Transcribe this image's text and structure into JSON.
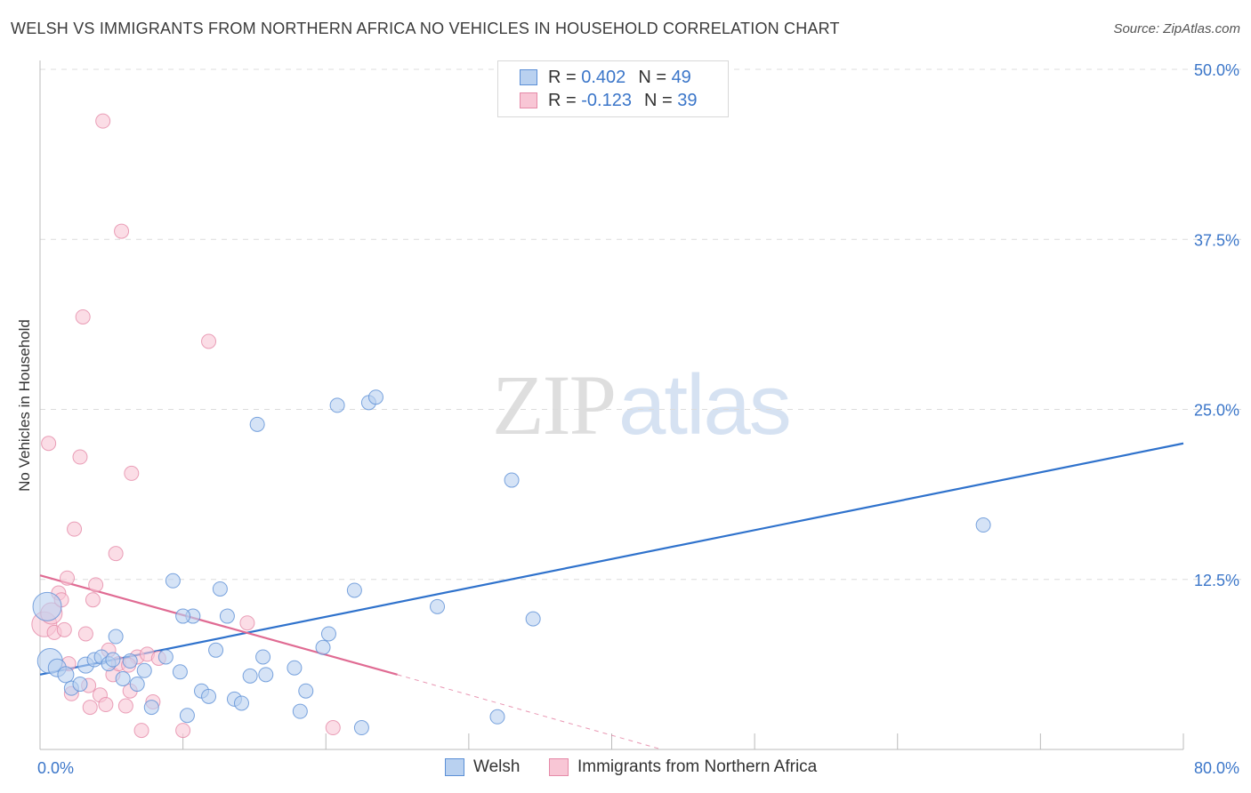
{
  "title": "WELSH VS IMMIGRANTS FROM NORTHERN AFRICA NO VEHICLES IN HOUSEHOLD CORRELATION CHART",
  "source": "Source: ZipAtlas.com",
  "watermark": {
    "part1": "ZIP",
    "part2": "atlas"
  },
  "legend": {
    "welsh": {
      "r_label": "R = ",
      "r_value": "0.402",
      "n_label": "N = ",
      "n_value": "49"
    },
    "immigrants": {
      "r_label": "R = ",
      "r_value": "-0.123",
      "n_label": "N = ",
      "n_value": "39"
    }
  },
  "chart_data": {
    "type": "scatter",
    "title": "WELSH VS IMMIGRANTS FROM NORTHERN AFRICA NO VEHICLES IN HOUSEHOLD CORRELATION CHART",
    "xlabel": "",
    "ylabel": "No Vehicles in Household",
    "xlim": [
      0,
      80
    ],
    "ylim": [
      0,
      50
    ],
    "x_tick_labels": [
      "0.0%",
      "80.0%"
    ],
    "y_ticks": [
      12.5,
      25.0,
      37.5,
      50.0
    ],
    "y_tick_labels": [
      "12.5%",
      "25.0%",
      "37.5%",
      "50.0%"
    ],
    "grid": true,
    "legend_position": "top-center",
    "colors": {
      "welsh_fill": "#b9d1f0",
      "welsh_stroke": "#5b8fd6",
      "welsh_line": "#2f72cc",
      "immigrants_fill": "#f8c6d5",
      "immigrants_stroke": "#e58aa8",
      "immigrants_line": "#e06b93",
      "tick_text": "#3b76c9",
      "grid": "#dcdcdc"
    },
    "series": [
      {
        "name": "Welsh",
        "r": 0.402,
        "n": 49,
        "trend": {
          "x0": 0,
          "y0": 5.5,
          "x1": 80,
          "y1": 22.5
        },
        "points": [
          [
            0.5,
            10.5,
            16
          ],
          [
            0.7,
            6.5,
            14
          ],
          [
            1.2,
            6.0,
            10
          ],
          [
            1.8,
            5.5,
            9
          ],
          [
            2.2,
            4.5,
            8
          ],
          [
            2.8,
            4.8,
            8
          ],
          [
            3.2,
            6.2,
            9
          ],
          [
            3.8,
            6.6,
            8
          ],
          [
            4.3,
            6.8,
            8
          ],
          [
            4.8,
            6.3,
            8
          ],
          [
            5.1,
            6.6,
            8
          ],
          [
            5.3,
            8.3,
            8
          ],
          [
            5.8,
            5.2,
            8
          ],
          [
            6.3,
            6.5,
            8
          ],
          [
            6.8,
            4.8,
            8
          ],
          [
            7.3,
            5.8,
            8
          ],
          [
            7.8,
            3.1,
            8
          ],
          [
            8.8,
            6.8,
            8
          ],
          [
            9.3,
            12.4,
            8
          ],
          [
            9.8,
            5.7,
            8
          ],
          [
            10.3,
            2.5,
            8
          ],
          [
            10.7,
            9.8,
            8
          ],
          [
            11.3,
            4.3,
            8
          ],
          [
            11.8,
            3.9,
            8
          ],
          [
            12.3,
            7.3,
            8
          ],
          [
            12.6,
            11.8,
            8
          ],
          [
            13.1,
            9.8,
            8
          ],
          [
            13.6,
            3.7,
            8
          ],
          [
            14.1,
            3.4,
            8
          ],
          [
            14.7,
            5.4,
            8
          ],
          [
            15.2,
            23.9,
            8
          ],
          [
            15.6,
            6.8,
            8
          ],
          [
            15.8,
            5.5,
            8
          ],
          [
            17.8,
            6.0,
            8
          ],
          [
            18.2,
            2.8,
            8
          ],
          [
            18.6,
            4.3,
            8
          ],
          [
            19.8,
            7.5,
            8
          ],
          [
            20.2,
            8.5,
            8
          ],
          [
            20.8,
            25.3,
            8
          ],
          [
            22.0,
            11.7,
            8
          ],
          [
            22.5,
            1.6,
            8
          ],
          [
            23.0,
            25.5,
            8
          ],
          [
            23.5,
            25.9,
            8
          ],
          [
            27.8,
            10.5,
            8
          ],
          [
            32.0,
            2.4,
            8
          ],
          [
            33.0,
            19.8,
            8
          ],
          [
            34.5,
            9.6,
            8
          ],
          [
            66.0,
            16.5,
            8
          ],
          [
            10.0,
            9.8,
            8
          ]
        ]
      },
      {
        "name": "Immigrants from Northern Africa",
        "r": -0.123,
        "n": 39,
        "trend": {
          "x0": 0,
          "y0": 12.8,
          "x1": 25,
          "y1": 5.5,
          "dash_to_x": 43.5,
          "dash_to_y": 0
        },
        "points": [
          [
            0.3,
            9.2,
            14
          ],
          [
            0.8,
            10.0,
            12
          ],
          [
            0.6,
            22.5,
            8
          ],
          [
            1.0,
            8.6,
            8
          ],
          [
            1.3,
            11.5,
            8
          ],
          [
            1.5,
            11.0,
            8
          ],
          [
            1.7,
            8.8,
            8
          ],
          [
            1.9,
            12.6,
            8
          ],
          [
            2.2,
            4.1,
            8
          ],
          [
            2.4,
            16.2,
            8
          ],
          [
            2.8,
            21.5,
            8
          ],
          [
            3.0,
            31.8,
            8
          ],
          [
            3.2,
            8.5,
            8
          ],
          [
            3.4,
            4.7,
            8
          ],
          [
            3.5,
            3.1,
            8
          ],
          [
            3.7,
            11.0,
            8
          ],
          [
            3.9,
            12.1,
            8
          ],
          [
            4.2,
            4.0,
            8
          ],
          [
            4.4,
            46.2,
            8
          ],
          [
            4.6,
            3.3,
            8
          ],
          [
            4.8,
            7.3,
            8
          ],
          [
            5.1,
            5.5,
            8
          ],
          [
            5.3,
            14.4,
            8
          ],
          [
            5.5,
            6.3,
            8
          ],
          [
            5.7,
            38.1,
            8
          ],
          [
            6.0,
            3.2,
            8
          ],
          [
            6.3,
            4.3,
            8
          ],
          [
            6.4,
            20.3,
            8
          ],
          [
            6.8,
            6.8,
            8
          ],
          [
            7.1,
            1.4,
            8
          ],
          [
            7.5,
            7.0,
            8
          ],
          [
            7.9,
            3.5,
            8
          ],
          [
            8.3,
            6.7,
            8
          ],
          [
            10.0,
            1.4,
            8
          ],
          [
            11.8,
            30.0,
            8
          ],
          [
            14.5,
            9.3,
            8
          ],
          [
            20.5,
            1.6,
            8
          ],
          [
            6.2,
            6.2,
            8
          ],
          [
            2.0,
            6.3,
            8
          ]
        ]
      }
    ]
  },
  "bottom_legend": {
    "welsh": "Welsh",
    "immigrants": "Immigrants from Northern Africa"
  }
}
